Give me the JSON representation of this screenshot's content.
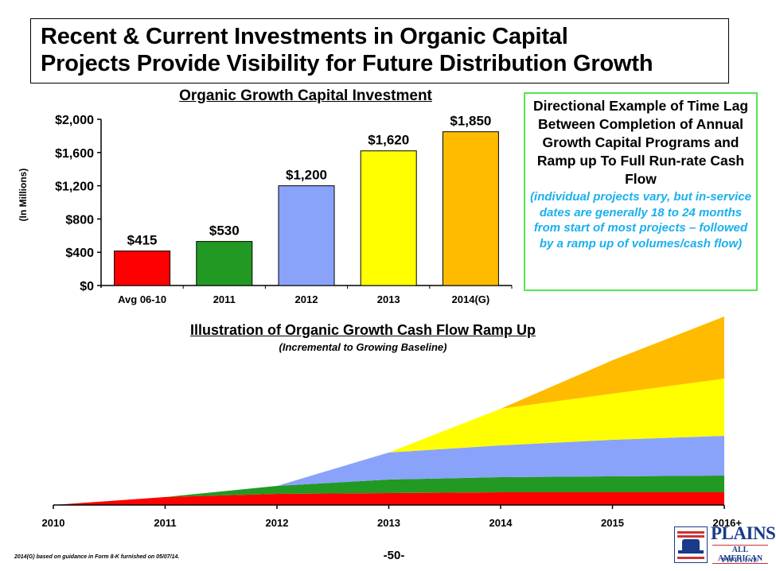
{
  "header": {
    "title_line1": "Recent & Current Investments in Organic Capital",
    "title_line2": "Projects Provide Visibility for Future Distribution Growth"
  },
  "callout": {
    "main": "Directional Example of Time Lag Between Completion of Annual Growth Capital Programs and Ramp up To Full Run-rate Cash Flow",
    "note": "(individual projects vary, but in-service dates are generally 18 to 24 months from start of most projects – followed by a ramp up of volumes/cash flow)",
    "border_color": "#55e655",
    "note_color": "#1ab0ee"
  },
  "footer": {
    "footnote": "2014(G) based on guidance in Form 8-K furnished on 05/07/14.",
    "page_number": "-50-"
  },
  "logo": {
    "name": "PLAINS",
    "line2": "ALL AMERICAN",
    "line3": "PIPELINE",
    "icon": "pipeline-tank-icon"
  },
  "chart_data": [
    {
      "type": "bar",
      "title": "Organic Growth Capital Investment",
      "ylabel": "(In Millions)",
      "xlabel": "",
      "categories": [
        "Avg 06-10",
        "2011",
        "2012",
        "2013",
        "2014(G)"
      ],
      "values": [
        415,
        530,
        1200,
        1620,
        1850
      ],
      "data_labels": [
        "$415",
        "$530",
        "$1,200",
        "$1,620",
        "$1,850"
      ],
      "colors": [
        "#ff0000",
        "#229922",
        "#89a3fb",
        "#ffff00",
        "#ffbb00"
      ],
      "ylim": [
        0,
        2000
      ],
      "yticks": [
        0,
        400,
        800,
        1200,
        1600,
        2000
      ],
      "ytick_labels": [
        "$0",
        "$400",
        "$800",
        "$1,200",
        "$1,600",
        "$2,000"
      ],
      "grid": false,
      "legend": "none"
    },
    {
      "type": "area",
      "stacked": true,
      "title": "Illustration of Organic Growth Cash Flow Ramp Up",
      "subtitle": "(Incremental to Growing Baseline)",
      "x": [
        "2010",
        "2011",
        "2012",
        "2013",
        "2014",
        "2015",
        "2016+"
      ],
      "series": [
        {
          "color": "#ff0000",
          "values": [
            0,
            10,
            14,
            15,
            16,
            16,
            16
          ]
        },
        {
          "color": "#229922",
          "values": [
            0,
            0,
            10,
            17,
            19,
            20,
            21
          ]
        },
        {
          "color": "#89a3fb",
          "values": [
            0,
            0,
            0,
            34,
            40,
            46,
            50
          ]
        },
        {
          "color": "#ffff00",
          "values": [
            0,
            0,
            0,
            0,
            46,
            58,
            72
          ]
        },
        {
          "color": "#ffbb00",
          "values": [
            0,
            0,
            0,
            0,
            0,
            42,
            78
          ]
        }
      ],
      "ylim": [
        0,
        250
      ],
      "grid": false,
      "legend": "none",
      "axis": "x-only"
    }
  ]
}
